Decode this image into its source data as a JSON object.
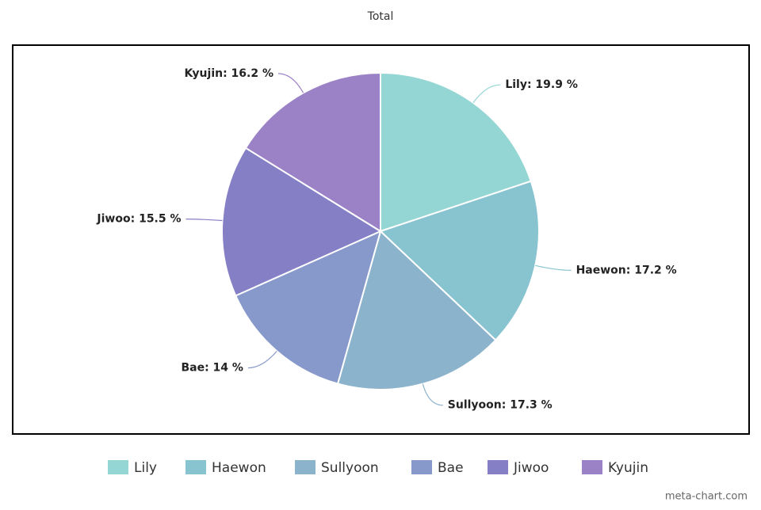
{
  "chart_data": {
    "type": "pie",
    "title": "Total",
    "categories": [
      "Lily",
      "Haewon",
      "Sullyoon",
      "Bae",
      "Jiwoo",
      "Kyujin"
    ],
    "values": [
      19.9,
      17.2,
      17.3,
      14,
      15.5,
      16.2
    ],
    "value_labels": [
      "Lily: 19.9 %",
      "Haewon: 17.2 %",
      "Sullyoon: 17.3 %",
      "Bae: 14 %",
      "Jiwoo: 15.5 %",
      "Kyujin: 16.2 %"
    ],
    "colors": [
      "#93d6d4",
      "#88c4cf",
      "#8bb3cc",
      "#8799cb",
      "#857fc6",
      "#9b82c6"
    ],
    "legend": "bottom",
    "watermark": "meta-chart.com"
  }
}
